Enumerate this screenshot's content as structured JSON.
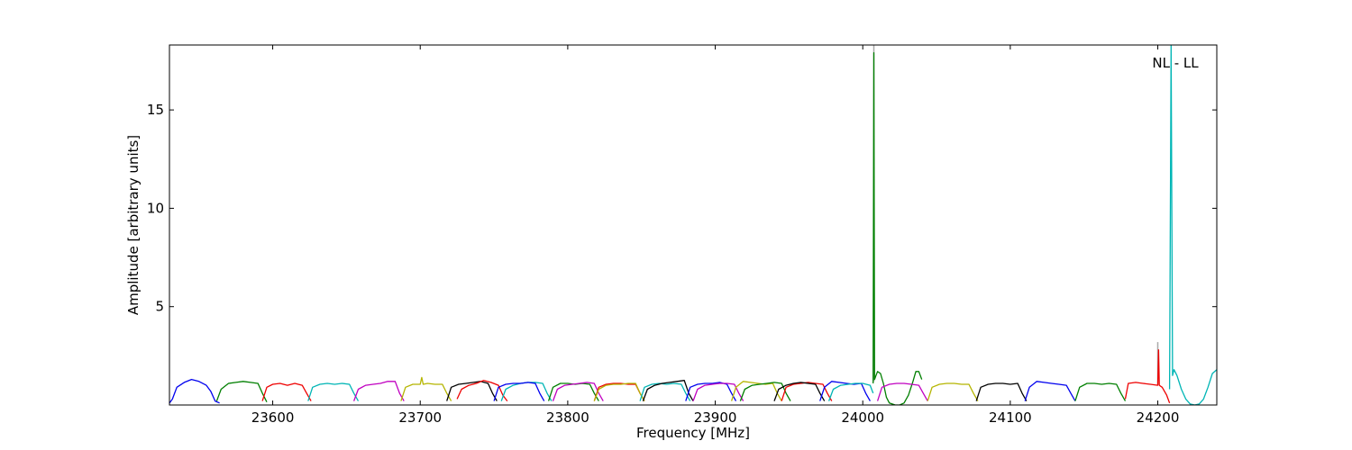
{
  "chart_data": {
    "type": "line",
    "title": "",
    "xlabel": "Frequency [MHz]",
    "ylabel": "Amplitude [arbitrary units]",
    "annotation": "NL - LL",
    "xlim": [
      23530,
      24240
    ],
    "ylim": [
      0,
      18.3
    ],
    "x_ticks": [
      23600,
      23700,
      23800,
      23900,
      24000,
      24100,
      24200
    ],
    "x_tick_labels": [
      "23600",
      "23700",
      "23800",
      "23900",
      "24000",
      "24100",
      "24200"
    ],
    "y_ticks": [
      5,
      10,
      15
    ],
    "y_tick_labels": [
      "5",
      "10",
      "15"
    ],
    "grid": false,
    "colors": {
      "blue": "#0000ee",
      "green": "#007f00",
      "red": "#ee0000",
      "cyan": "#00b5b5",
      "magenta": "#c000c0",
      "olive": "#b5b500",
      "black": "#000000",
      "gray": "#aaaaaa"
    },
    "series": [
      {
        "color": "blue",
        "x": [
          23530,
          23532,
          23535,
          23540,
          23545,
          23550,
          23555,
          23558,
          23561,
          23564
        ],
        "y": [
          0.1,
          0.3,
          0.9,
          1.15,
          1.3,
          1.2,
          1.0,
          0.7,
          0.2,
          0.1
        ]
      },
      {
        "color": "green",
        "x": [
          23562,
          23565,
          23570,
          23575,
          23580,
          23585,
          23590,
          23593,
          23596
        ],
        "y": [
          0.2,
          0.8,
          1.1,
          1.15,
          1.2,
          1.15,
          1.1,
          0.6,
          0.15
        ]
      },
      {
        "color": "red",
        "x": [
          23593,
          23596,
          23600,
          23605,
          23610,
          23615,
          23620,
          23623,
          23626
        ],
        "y": [
          0.2,
          0.9,
          1.05,
          1.1,
          1.0,
          1.1,
          1.0,
          0.6,
          0.2
        ]
      },
      {
        "color": "cyan",
        "x": [
          23624,
          23627,
          23632,
          23637,
          23642,
          23647,
          23652,
          23655,
          23658
        ],
        "y": [
          0.2,
          0.9,
          1.05,
          1.1,
          1.05,
          1.1,
          1.05,
          0.6,
          0.2
        ]
      },
      {
        "color": "magenta",
        "x": [
          23655,
          23658,
          23663,
          23668,
          23673,
          23678,
          23683,
          23686,
          23689
        ],
        "y": [
          0.2,
          0.8,
          1.0,
          1.05,
          1.1,
          1.2,
          1.2,
          0.6,
          0.2
        ]
      },
      {
        "color": "olive",
        "x": [
          23687,
          23690,
          23695,
          23700,
          23701,
          23702,
          23705,
          23710,
          23715,
          23718,
          23721
        ],
        "y": [
          0.2,
          0.9,
          1.05,
          1.05,
          1.4,
          1.05,
          1.1,
          1.05,
          1.05,
          0.6,
          0.2
        ]
      },
      {
        "color": "black",
        "x": [
          23718,
          23721,
          23726,
          23731,
          23736,
          23741,
          23746,
          23749,
          23752
        ],
        "y": [
          0.2,
          0.9,
          1.05,
          1.1,
          1.15,
          1.2,
          1.1,
          0.6,
          0.2
        ]
      },
      {
        "color": "red",
        "x": [
          23725,
          23728,
          23733,
          23738,
          23743,
          23748,
          23753,
          23756,
          23759
        ],
        "y": [
          0.3,
          0.8,
          1.0,
          1.1,
          1.25,
          1.15,
          1.0,
          0.5,
          0.2
        ]
      },
      {
        "color": "cyan",
        "x": [
          23755,
          23758,
          23763,
          23768,
          23773,
          23778,
          23783,
          23786,
          23789
        ],
        "y": [
          0.2,
          0.8,
          1.0,
          1.1,
          1.15,
          1.15,
          1.1,
          0.6,
          0.2
        ]
      },
      {
        "color": "blue",
        "x": [
          23750,
          23753,
          23758,
          23763,
          23768,
          23773,
          23778,
          23781,
          23784
        ],
        "y": [
          0.2,
          0.9,
          1.05,
          1.1,
          1.1,
          1.15,
          1.1,
          0.6,
          0.2
        ]
      },
      {
        "color": "green",
        "x": [
          23787,
          23790,
          23795,
          23800,
          23805,
          23810,
          23815,
          23818,
          23821
        ],
        "y": [
          0.2,
          0.9,
          1.1,
          1.1,
          1.05,
          1.1,
          1.05,
          0.6,
          0.2
        ]
      },
      {
        "color": "magenta",
        "x": [
          23790,
          23793,
          23798,
          23803,
          23808,
          23813,
          23818,
          23821,
          23824
        ],
        "y": [
          0.2,
          0.8,
          1.0,
          1.05,
          1.1,
          1.15,
          1.1,
          0.6,
          0.2
        ]
      },
      {
        "color": "red",
        "x": [
          23818,
          23821,
          23826,
          23831,
          23836,
          23841,
          23846,
          23849,
          23852
        ],
        "y": [
          0.2,
          0.9,
          1.05,
          1.1,
          1.1,
          1.05,
          1.05,
          0.6,
          0.2
        ]
      },
      {
        "color": "olive",
        "x": [
          23818,
          23821,
          23826,
          23831,
          23836,
          23841,
          23846,
          23849,
          23852
        ],
        "y": [
          0.2,
          0.8,
          1.0,
          1.05,
          1.05,
          1.1,
          1.1,
          0.6,
          0.2
        ]
      },
      {
        "color": "cyan",
        "x": [
          23849,
          23852,
          23857,
          23862,
          23867,
          23872,
          23877,
          23880,
          23883
        ],
        "y": [
          0.2,
          0.9,
          1.05,
          1.1,
          1.05,
          1.1,
          1.05,
          0.6,
          0.2
        ]
      },
      {
        "color": "black",
        "x": [
          23851,
          23854,
          23859,
          23864,
          23869,
          23874,
          23879,
          23882,
          23885
        ],
        "y": [
          0.2,
          0.8,
          1.0,
          1.1,
          1.15,
          1.2,
          1.25,
          0.6,
          0.2
        ]
      },
      {
        "color": "blue",
        "x": [
          23880,
          23883,
          23888,
          23893,
          23898,
          23903,
          23908,
          23911,
          23914
        ],
        "y": [
          0.2,
          0.9,
          1.05,
          1.1,
          1.1,
          1.15,
          1.05,
          0.6,
          0.2
        ]
      },
      {
        "color": "magenta",
        "x": [
          23885,
          23888,
          23893,
          23898,
          23903,
          23908,
          23913,
          23916,
          23919
        ],
        "y": [
          0.2,
          0.8,
          1.0,
          1.05,
          1.1,
          1.1,
          1.05,
          0.6,
          0.2
        ]
      },
      {
        "color": "olive",
        "x": [
          23911,
          23914,
          23919,
          23924,
          23929,
          23934,
          23939,
          23942,
          23945
        ],
        "y": [
          0.2,
          0.9,
          1.2,
          1.15,
          1.1,
          1.05,
          1.1,
          0.6,
          0.2
        ]
      },
      {
        "color": "green",
        "x": [
          23917,
          23920,
          23925,
          23930,
          23935,
          23940,
          23945,
          23948,
          23951
        ],
        "y": [
          0.2,
          0.8,
          1.0,
          1.05,
          1.1,
          1.15,
          1.1,
          0.6,
          0.2
        ]
      },
      {
        "color": "red",
        "x": [
          23945,
          23948,
          23953,
          23958,
          23963,
          23968,
          23973,
          23976,
          23979
        ],
        "y": [
          0.2,
          0.9,
          1.05,
          1.1,
          1.15,
          1.1,
          1.05,
          0.6,
          0.2
        ]
      },
      {
        "color": "black",
        "x": [
          23940,
          23943,
          23948,
          23953,
          23958,
          23963,
          23968,
          23971,
          23974
        ],
        "y": [
          0.2,
          0.8,
          1.0,
          1.1,
          1.15,
          1.1,
          1.05,
          0.6,
          0.2
        ]
      },
      {
        "color": "blue",
        "x": [
          23971,
          23974,
          23979,
          23984,
          23989,
          23994,
          23999,
          24002,
          24005
        ],
        "y": [
          0.2,
          0.9,
          1.2,
          1.15,
          1.1,
          1.05,
          1.1,
          0.6,
          0.2
        ]
      },
      {
        "color": "cyan",
        "x": [
          23977,
          23980,
          23985,
          23990,
          23995,
          24000,
          24005,
          24007
        ],
        "y": [
          0.2,
          0.8,
          1.0,
          1.05,
          1.1,
          1.1,
          1.0,
          0.6
        ]
      },
      {
        "color": "gray",
        "x": [
          24007.5,
          24007.5
        ],
        "y": [
          1.2,
          18.3
        ]
      },
      {
        "color": "green",
        "x": [
          24007,
          24007.5,
          24008,
          24009,
          24010,
          24012,
          24014,
          24016,
          24018,
          24020,
          24022,
          24025,
          24028,
          24031,
          24034,
          24036,
          24038,
          24040
        ],
        "y": [
          1.1,
          17.9,
          1.3,
          1.5,
          1.7,
          1.6,
          1.1,
          0.4,
          0.1,
          0.05,
          0.0,
          0.0,
          0.1,
          0.5,
          1.2,
          1.7,
          1.7,
          1.3
        ]
      },
      {
        "color": "magenta",
        "x": [
          24010,
          24013,
          24018,
          24023,
          24028,
          24033,
          24038,
          24041,
          24044
        ],
        "y": [
          0.2,
          0.9,
          1.05,
          1.1,
          1.1,
          1.05,
          1.0,
          0.6,
          0.2
        ]
      },
      {
        "color": "olive",
        "x": [
          24044,
          24047,
          24052,
          24057,
          24062,
          24067,
          24072,
          24075,
          24078
        ],
        "y": [
          0.2,
          0.9,
          1.05,
          1.1,
          1.1,
          1.05,
          1.05,
          0.6,
          0.2
        ]
      },
      {
        "color": "black",
        "x": [
          24077,
          24080,
          24085,
          24090,
          24095,
          24100,
          24105,
          24108,
          24111
        ],
        "y": [
          0.2,
          0.9,
          1.05,
          1.1,
          1.1,
          1.05,
          1.1,
          0.6,
          0.2
        ]
      },
      {
        "color": "blue",
        "x": [
          24110,
          24113,
          24118,
          24123,
          24128,
          24133,
          24138,
          24141,
          24144
        ],
        "y": [
          0.2,
          0.9,
          1.2,
          1.15,
          1.1,
          1.05,
          1.0,
          0.6,
          0.2
        ]
      },
      {
        "color": "green",
        "x": [
          24144,
          24147,
          24152,
          24157,
          24162,
          24167,
          24172,
          24175,
          24178
        ],
        "y": [
          0.2,
          0.9,
          1.1,
          1.1,
          1.05,
          1.1,
          1.05,
          0.6,
          0.2
        ]
      },
      {
        "color": "gray",
        "x": [
          24200,
          24200
        ],
        "y": [
          1.0,
          3.2
        ]
      },
      {
        "color": "red",
        "x": [
          24178,
          24180,
          24185,
          24190,
          24195,
          24200,
          24200.5,
          24201,
          24203,
          24206,
          24208
        ],
        "y": [
          0.3,
          1.1,
          1.15,
          1.1,
          1.05,
          1.0,
          2.8,
          1.0,
          0.9,
          0.5,
          0.1
        ]
      },
      {
        "color": "cyan",
        "x": [
          24208,
          24209,
          24210,
          24211,
          24213,
          24216,
          24219,
          24222,
          24225,
          24228,
          24231,
          24234,
          24237,
          24240
        ],
        "y": [
          0.8,
          18.3,
          1.5,
          1.8,
          1.5,
          0.8,
          0.3,
          0.05,
          0.0,
          0.05,
          0.3,
          0.9,
          1.6,
          1.8
        ]
      }
    ]
  }
}
